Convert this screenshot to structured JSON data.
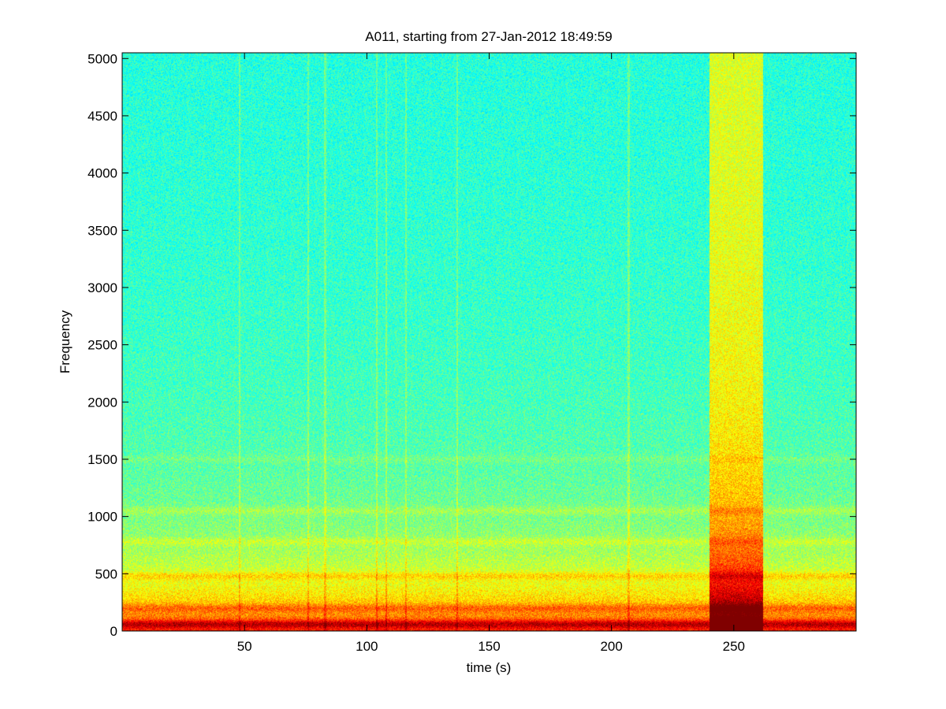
{
  "chart_data": {
    "type": "heatmap",
    "subtype": "spectrogram",
    "title": "A011, starting from 27-Jan-2012 18:49:59",
    "xlabel": "time (s)",
    "ylabel": "Frequency",
    "xlim": [
      0,
      300
    ],
    "ylim": [
      0,
      5050
    ],
    "xticks": [
      50,
      100,
      150,
      200,
      250
    ],
    "yticks": [
      0,
      500,
      1000,
      1500,
      2000,
      2500,
      3000,
      3500,
      4000,
      4500,
      5000
    ],
    "colormap": "jet",
    "grid": false,
    "high_energy_events": [
      {
        "t_start": 240,
        "t_end": 262,
        "f_max": 5050
      }
    ],
    "narrow_transients_s": [
      48,
      76,
      83,
      104,
      108,
      116,
      137,
      207
    ],
    "horizontal_bands_hz": [
      {
        "f": 60,
        "level": "very high"
      },
      {
        "f": 200,
        "level": "high"
      },
      {
        "f": 480,
        "level": "high"
      },
      {
        "f": 780,
        "level": "medium"
      },
      {
        "f": 1050,
        "level": "medium"
      },
      {
        "f": 1500,
        "level": "low"
      }
    ]
  }
}
